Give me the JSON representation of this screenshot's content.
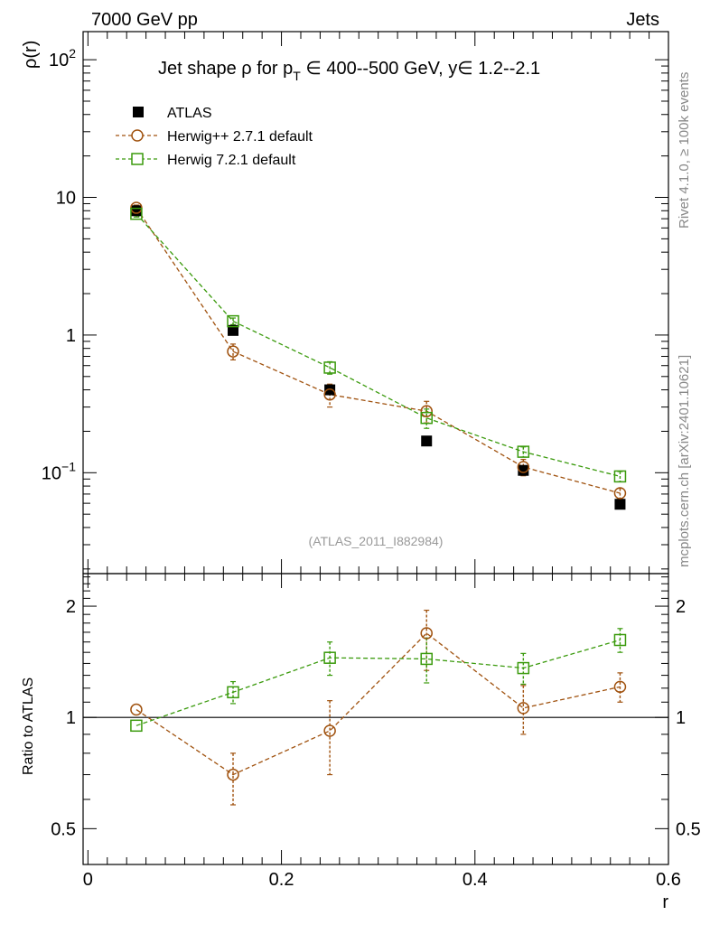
{
  "header": {
    "left": "7000 GeV pp",
    "right": "Jets"
  },
  "side_labels": {
    "rivet": "Rivet 4.1.0, ≥ 100k events",
    "mcplots": "mcplots.cern.ch [arXiv:2401.10621]"
  },
  "watermark": "(ATLAS_2011_I882984)",
  "chart_data": [
    {
      "type": "scatter",
      "panel": "main",
      "title": "Jet shape ρ for p_T ∈ 400--500 GeV, y∈ 1.2--2.1",
      "title_parts": {
        "prefix": "Jet shape ρ for p",
        "sub": "T",
        "suffix": " ∈ 400--500 GeV, y∈ 1.2--2.1"
      },
      "ylabel": "ρ(r)",
      "yscale": "log",
      "ylim": [
        0.0185,
        160
      ],
      "xlim": [
        -0.005,
        0.6
      ],
      "y_ticks": [
        {
          "value": 100,
          "base": "10",
          "exp": "2"
        },
        {
          "value": 10,
          "base": "10",
          "exp": ""
        },
        {
          "value": 1,
          "base": "1",
          "exp": ""
        },
        {
          "value": 0.1,
          "base": "10",
          "exp": "−1"
        }
      ],
      "x": [
        0.05,
        0.15,
        0.25,
        0.35,
        0.45,
        0.55
      ],
      "series": [
        {
          "name": "ATLAS",
          "marker": "filled-square",
          "color": "#000000",
          "values": [
            8.0,
            1.08,
            0.4,
            0.17,
            0.104,
            0.059
          ],
          "errors": [
            0.25,
            0.05,
            0.02,
            0.01,
            0.005,
            0.003
          ]
        },
        {
          "name": "Herwig++ 2.7.1 default",
          "marker": "open-circle",
          "color": "#a0520f",
          "values": [
            8.4,
            0.76,
            0.37,
            0.28,
            0.11,
            0.071
          ],
          "errors": [
            0.4,
            0.1,
            0.07,
            0.05,
            0.015,
            0.006
          ]
        },
        {
          "name": "Herwig 7.2.1 default",
          "marker": "open-square",
          "color": "#3a9a0c",
          "values": [
            7.6,
            1.26,
            0.58,
            0.25,
            0.142,
            0.094
          ],
          "errors": [
            0.4,
            0.07,
            0.06,
            0.04,
            0.012,
            0.008
          ]
        }
      ]
    },
    {
      "type": "scatter",
      "panel": "ratio",
      "ylabel": "Ratio to ATLAS",
      "xlabel": "r",
      "yscale": "log",
      "ylim": [
        0.4,
        2.45
      ],
      "xlim": [
        -0.005,
        0.6
      ],
      "y_ticks": [
        {
          "value": 2,
          "label": "2"
        },
        {
          "value": 1,
          "label": "1"
        },
        {
          "value": 0.5,
          "label": "0.5"
        }
      ],
      "x_ticks": [
        {
          "value": 0,
          "label": "0"
        },
        {
          "value": 0.2,
          "label": "0.2"
        },
        {
          "value": 0.4,
          "label": "0.4"
        },
        {
          "value": 0.6,
          "label": "0.6"
        }
      ],
      "x": [
        0.05,
        0.15,
        0.25,
        0.35,
        0.45,
        0.55
      ],
      "reference": 1,
      "series": [
        {
          "name": "Herwig++ 2.7.1 default",
          "marker": "open-circle",
          "color": "#a0520f",
          "values": [
            1.05,
            0.7,
            0.92,
            1.69,
            1.06,
            1.21
          ],
          "err_low": [
            0.0,
            0.12,
            0.22,
            0.35,
            0.16,
            0.11
          ],
          "err_high": [
            0.0,
            0.1,
            0.19,
            0.26,
            0.16,
            0.11
          ]
        },
        {
          "name": "Herwig 7.2.1 default",
          "marker": "open-square",
          "color": "#3a9a0c",
          "values": [
            0.95,
            1.17,
            1.45,
            1.44,
            1.36,
            1.62
          ],
          "err_low": [
            0.0,
            0.08,
            0.15,
            0.2,
            0.13,
            0.12
          ],
          "err_high": [
            0.0,
            0.08,
            0.15,
            0.2,
            0.13,
            0.12
          ]
        }
      ]
    }
  ]
}
